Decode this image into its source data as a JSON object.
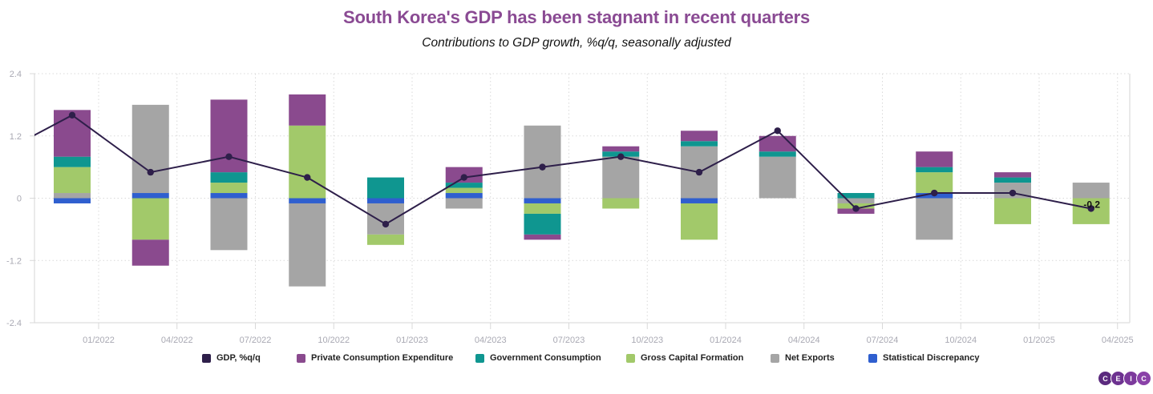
{
  "header": {
    "title": "South Korea's GDP has been stagnant in recent quarters",
    "subtitle": "Contributions to GDP growth, %q/q, seasonally adjusted"
  },
  "colors": {
    "title": "#8a4a93",
    "gdp": "#2e1f4a",
    "pce": "#8a4a8e",
    "gov": "#0f9690",
    "gcf": "#a2c96a",
    "net_exports": "#a5a5a5",
    "stat_disc": "#2f5fcf",
    "grid": "#d9d9d9",
    "axis_text": "#a9a9b3"
  },
  "legend": [
    {
      "key": "gdp",
      "label": "GDP, %q/q"
    },
    {
      "key": "pce",
      "label": "Private Consumption Expenditure"
    },
    {
      "key": "gov",
      "label": "Government Consumption"
    },
    {
      "key": "gcf",
      "label": "Gross Capital Formation"
    },
    {
      "key": "net_exports",
      "label": "Net Exports"
    },
    {
      "key": "stat_disc",
      "label": "Statistical Discrepancy"
    }
  ],
  "logo": {
    "letters": [
      "C",
      "E",
      "I",
      "C"
    ]
  },
  "chart_data": {
    "type": "bar",
    "stacked": true,
    "title": "South Korea's GDP has been stagnant in recent quarters",
    "subtitle": "Contributions to GDP growth, %q/q, seasonally adjusted",
    "xlabel": "",
    "ylabel": "",
    "ylim": [
      -2.4,
      2.4
    ],
    "yticks": [
      "2.4",
      "1.2",
      "0",
      "-1.2",
      "-2.4"
    ],
    "ytick_values": [
      2.4,
      1.2,
      0,
      -1.2,
      -2.4
    ],
    "xticks": [
      "01/2022",
      "04/2022",
      "07/2022",
      "10/2022",
      "01/2023",
      "04/2023",
      "07/2023",
      "10/2023",
      "01/2024",
      "04/2024",
      "07/2024",
      "10/2024",
      "01/2025",
      "04/2025"
    ],
    "grid": true,
    "legend_position": "bottom",
    "categories": [
      "Q4 2021",
      "Q1 2022",
      "Q2 2022",
      "Q3 2022",
      "Q4 2022",
      "Q1 2023",
      "Q2 2023",
      "Q3 2023",
      "Q4 2023",
      "Q1 2024",
      "Q2 2024",
      "Q3 2024",
      "Q4 2024",
      "Q1 2025"
    ],
    "series": [
      {
        "key": "stat_disc",
        "name": "Statistical Discrepancy",
        "kind": "bar",
        "values": [
          -0.1,
          0.1,
          0.1,
          -0.1,
          -0.1,
          0.1,
          -0.1,
          0.0,
          -0.1,
          0.0,
          0.0,
          0.1,
          0.0,
          0.0
        ]
      },
      {
        "key": "net_exports",
        "name": "Net Exports",
        "kind": "bar",
        "values": [
          0.1,
          1.7,
          -1.0,
          -1.6,
          -0.6,
          -0.2,
          1.4,
          0.8,
          1.0,
          0.8,
          -0.1,
          -0.8,
          0.3,
          0.3
        ]
      },
      {
        "key": "gcf",
        "name": "Gross Capital Formation",
        "kind": "bar",
        "values": [
          0.5,
          -0.8,
          0.2,
          1.4,
          -0.2,
          0.1,
          -0.2,
          -0.2,
          -0.7,
          0.0,
          -0.1,
          0.4,
          -0.5,
          -0.5
        ]
      },
      {
        "key": "gov",
        "name": "Government Consumption",
        "kind": "bar",
        "values": [
          0.2,
          0.0,
          0.2,
          0.0,
          0.4,
          0.1,
          -0.4,
          0.1,
          0.1,
          0.1,
          0.1,
          0.1,
          0.1,
          0.0
        ]
      },
      {
        "key": "pce",
        "name": "Private Consumption Expenditure",
        "kind": "bar",
        "values": [
          0.9,
          -0.5,
          1.4,
          0.6,
          0.0,
          0.3,
          -0.1,
          0.1,
          0.2,
          0.3,
          -0.1,
          0.3,
          0.1,
          0.0
        ]
      },
      {
        "key": "gdp",
        "name": "GDP, %q/q",
        "kind": "line",
        "prior_value": 0.8,
        "values": [
          1.6,
          0.5,
          0.8,
          0.4,
          -0.5,
          0.4,
          0.6,
          0.8,
          0.5,
          1.3,
          -0.2,
          0.1,
          0.1,
          -0.2
        ]
      }
    ],
    "annotations": [
      {
        "category": "Q1 2025",
        "series": "GDP, %q/q",
        "text": "-0.2"
      }
    ]
  }
}
